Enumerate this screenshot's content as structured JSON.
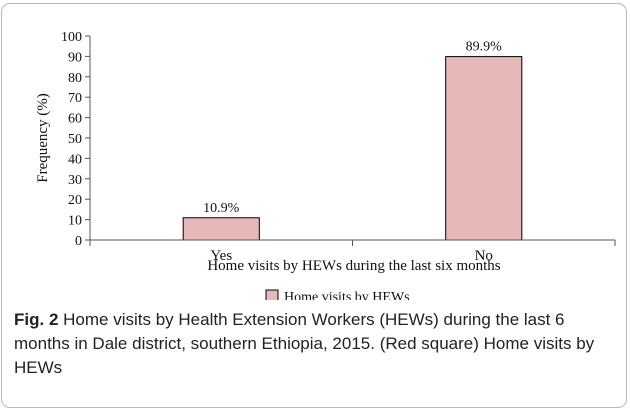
{
  "chart_data": {
    "type": "bar",
    "categories": [
      "Yes",
      "No"
    ],
    "values": [
      10.9,
      89.9
    ],
    "data_labels": [
      "10.9%",
      "89.9%"
    ],
    "xlabel": "Home visits by HEWs during the last six months",
    "ylabel": "Frequency (%)",
    "ylim": [
      0,
      100
    ],
    "yticks": [
      0,
      10,
      20,
      30,
      40,
      50,
      60,
      70,
      80,
      90,
      100
    ],
    "grid": false,
    "legend": {
      "placement": "bottom-center",
      "entries": [
        "Home visits by HEWs"
      ]
    },
    "colors": {
      "bar_fill": "#e6b8b7",
      "bar_stroke": "#000000",
      "axis": "#555555"
    }
  },
  "caption": {
    "label": "Fig. 2",
    "text": "Home visits by Health Extension Workers (HEWs) during the last 6 months in Dale district, southern Ethiopia, 2015. (Red square) Home visits by HEWs"
  }
}
